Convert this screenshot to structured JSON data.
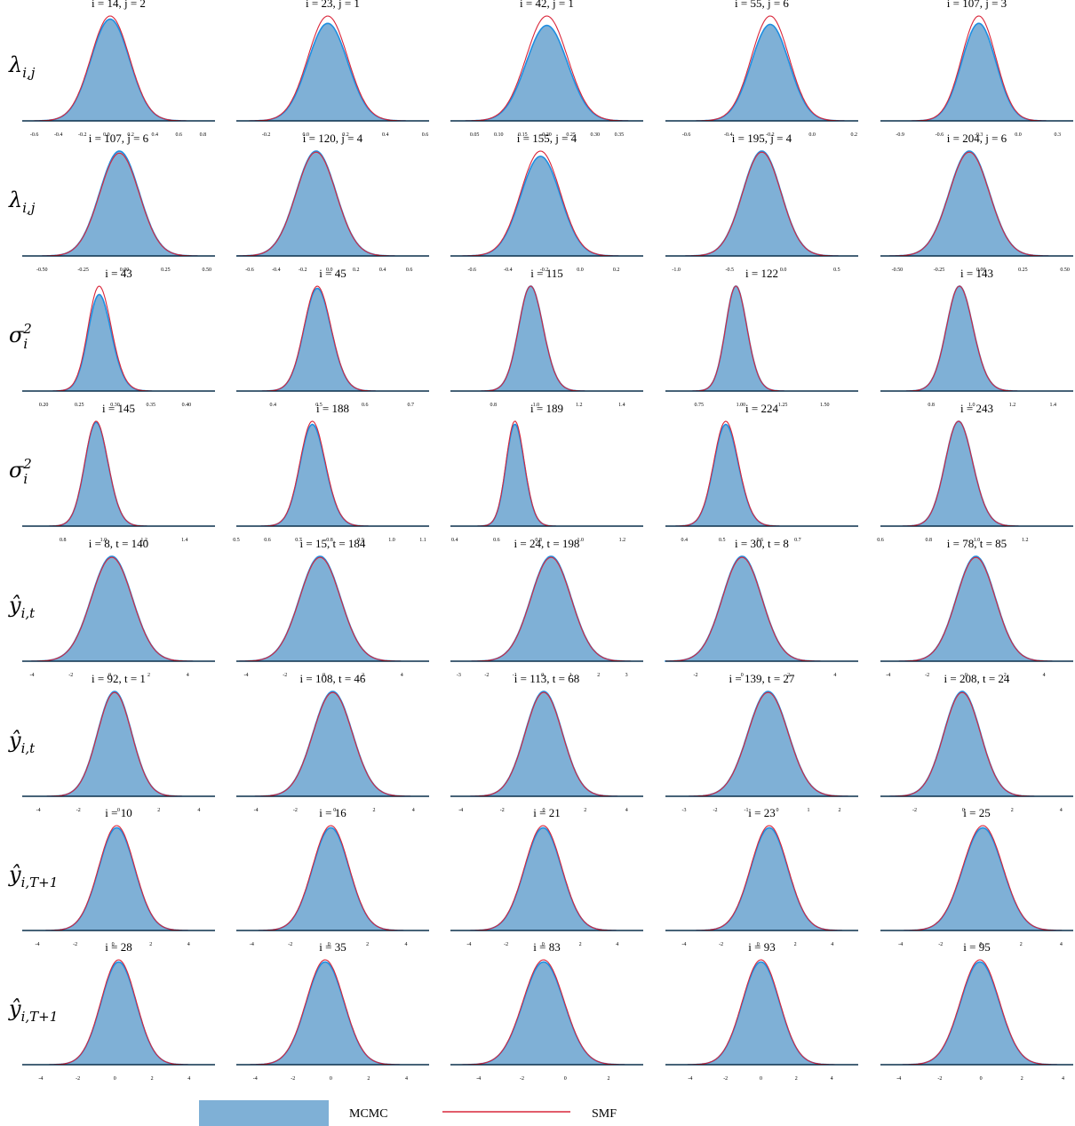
{
  "colors": {
    "mcmc_fill": "#7fb0d6",
    "mcmc_edge": "#1f8ee0",
    "smf_line": "#d9263a",
    "axis": "#000000"
  },
  "legend": {
    "mcmc_label": "MCMC",
    "smf_label": "SMF"
  },
  "row_labels": [
    "λi,j",
    "λi,j",
    "σi2",
    "σi2",
    "ŷi,t",
    "ŷi,t",
    "ŷi,T+1",
    "ŷi,T+1"
  ],
  "chart_data": {
    "type": "area",
    "series_names": [
      "MCMC",
      "SMF"
    ],
    "grid": false,
    "panels": [
      [
        {
          "title": "i = 14, j = 2",
          "ticks": [
            "-0.6",
            "-0.4",
            "-0.2",
            "0.0",
            "0.2",
            "0.4",
            "0.6",
            "0.8"
          ],
          "xlim": [
            -0.7,
            0.9
          ],
          "mean": 0.03,
          "sd": 0.16,
          "skew": 0,
          "peak_mcmc": 0.97,
          "peak_smf": 1.0
        },
        {
          "title": "i = 23, j = 1",
          "ticks": [
            "-0.2",
            "0.0",
            "0.2",
            "0.4",
            "0.6"
          ],
          "xlim": [
            -0.35,
            0.62
          ],
          "mean": 0.11,
          "sd": 0.1,
          "skew": 0,
          "peak_mcmc": 0.93,
          "peak_smf": 1.0
        },
        {
          "title": "i = 42, j = 1",
          "ticks": [
            "0.05",
            "0.10",
            "0.15",
            "0.20",
            "0.25",
            "0.30",
            "0.35"
          ],
          "xlim": [
            0.0,
            0.4
          ],
          "mean": 0.2,
          "sd": 0.043,
          "skew": 0,
          "peak_mcmc": 0.91,
          "peak_smf": 1.0
        },
        {
          "title": "i = 55, j = 6",
          "ticks": [
            "-0.6",
            "-0.4",
            "-0.2",
            "0.0",
            "0.2"
          ],
          "xlim": [
            -0.7,
            0.22
          ],
          "mean": -0.2,
          "sd": 0.09,
          "skew": 0,
          "peak_mcmc": 0.92,
          "peak_smf": 1.0
        },
        {
          "title": "i = 107, j = 3",
          "ticks": [
            "-0.9",
            "-0.6",
            "-0.3",
            "0.0",
            "0.3"
          ],
          "xlim": [
            -1.05,
            0.42
          ],
          "mean": -0.3,
          "sd": 0.13,
          "skew": 0,
          "peak_mcmc": 0.93,
          "peak_smf": 1.0
        }
      ],
      [
        {
          "title": "i = 107, j = 6",
          "ticks": [
            "-0.50",
            "-0.25",
            "0.00",
            "0.25",
            "0.50"
          ],
          "xlim": [
            -0.62,
            0.55
          ],
          "mean": -0.03,
          "sd": 0.12,
          "skew": 0,
          "peak_mcmc": 1.0,
          "peak_smf": 0.98
        },
        {
          "title": "i = 120, j = 4",
          "ticks": [
            "-0.6",
            "-0.4",
            "-0.2",
            "0.0",
            "0.2",
            "0.4",
            "0.6"
          ],
          "xlim": [
            -0.7,
            0.75
          ],
          "mean": -0.1,
          "sd": 0.15,
          "skew": 0,
          "peak_mcmc": 1.0,
          "peak_smf": 0.99
        },
        {
          "title": "i = 155, j = 4",
          "ticks": [
            "-0.6",
            "-0.4",
            "-0.2",
            "0.0",
            "0.2"
          ],
          "xlim": [
            -0.72,
            0.35
          ],
          "mean": -0.22,
          "sd": 0.11,
          "skew": 0,
          "peak_mcmc": 0.95,
          "peak_smf": 1.0
        },
        {
          "title": "i = 195, j = 4",
          "ticks": [
            "-1.0",
            "-0.5",
            "0.0",
            "0.5"
          ],
          "xlim": [
            -1.1,
            0.7
          ],
          "mean": -0.2,
          "sd": 0.18,
          "skew": 0,
          "peak_mcmc": 1.0,
          "peak_smf": 0.99
        },
        {
          "title": "i = 204, j = 6",
          "ticks": [
            "-0.50",
            "-0.25",
            "0.00",
            "0.25",
            "0.50"
          ],
          "xlim": [
            -0.6,
            0.55
          ],
          "mean": -0.07,
          "sd": 0.12,
          "skew": 0,
          "peak_mcmc": 1.0,
          "peak_smf": 0.99
        }
      ],
      [
        {
          "title": "i = 43",
          "ticks": [
            "0.20",
            "0.25",
            "0.30",
            "0.35",
            "0.40"
          ],
          "xlim": [
            0.17,
            0.44
          ],
          "mean": 0.267,
          "sd": 0.021,
          "skew": 0.55,
          "peak_mcmc": 0.92,
          "peak_smf": 1.0
        },
        {
          "title": "i = 45",
          "ticks": [
            "0.4",
            "0.5",
            "0.6",
            "0.7"
          ],
          "xlim": [
            0.32,
            0.74
          ],
          "mean": 0.48,
          "sd": 0.035,
          "skew": 0.4,
          "peak_mcmc": 0.98,
          "peak_smf": 1.0
        },
        {
          "title": "i = 115",
          "ticks": [
            "0.8",
            "1.0",
            "1.2",
            "1.4"
          ],
          "xlim": [
            0.6,
            1.5
          ],
          "mean": 0.94,
          "sd": 0.07,
          "skew": 0.45,
          "peak_mcmc": 1.0,
          "peak_smf": 1.0
        },
        {
          "title": "i = 122",
          "ticks": [
            "0.75",
            "1.00",
            "1.25",
            "1.50"
          ],
          "xlim": [
            0.55,
            1.7
          ],
          "mean": 0.93,
          "sd": 0.08,
          "skew": 0.5,
          "peak_mcmc": 1.0,
          "peak_smf": 1.0
        },
        {
          "title": "i = 143",
          "ticks": [
            "0.8",
            "1.0",
            "1.2",
            "1.4"
          ],
          "xlim": [
            0.55,
            1.5
          ],
          "mean": 0.9,
          "sd": 0.08,
          "skew": 0.45,
          "peak_mcmc": 1.0,
          "peak_smf": 1.0
        }
      ],
      [
        {
          "title": "i = 145",
          "ticks": [
            "0.8",
            "1.0",
            "1.2",
            "1.4"
          ],
          "xlim": [
            0.6,
            1.55
          ],
          "mean": 0.93,
          "sd": 0.07,
          "skew": 0.45,
          "peak_mcmc": 0.99,
          "peak_smf": 1.0
        },
        {
          "title": "i = 188",
          "ticks": [
            "0.5",
            "0.6",
            "0.7",
            "0.8",
            "0.9",
            "1.0",
            "1.1"
          ],
          "xlim": [
            0.5,
            1.12
          ],
          "mean": 0.72,
          "sd": 0.05,
          "skew": 0.45,
          "peak_mcmc": 0.97,
          "peak_smf": 1.0
        },
        {
          "title": "i = 189",
          "ticks": [
            "0.4",
            "0.6",
            "0.8",
            "1.0",
            "1.2"
          ],
          "xlim": [
            0.38,
            1.3
          ],
          "mean": 0.66,
          "sd": 0.055,
          "skew": 0.5,
          "peak_mcmc": 0.97,
          "peak_smf": 1.0
        },
        {
          "title": "i = 224",
          "ticks": [
            "0.4",
            "0.5",
            "0.6",
            "0.7"
          ],
          "xlim": [
            0.35,
            0.86
          ],
          "mean": 0.49,
          "sd": 0.04,
          "skew": 0.45,
          "peak_mcmc": 0.97,
          "peak_smf": 1.0
        },
        {
          "title": "i = 243",
          "ticks": [
            "0.6",
            "0.8",
            "1.0",
            "1.2"
          ],
          "xlim": [
            0.6,
            1.4
          ],
          "mean": 0.89,
          "sd": 0.07,
          "skew": 0.45,
          "peak_mcmc": 1.0,
          "peak_smf": 1.0
        }
      ],
      [
        {
          "title": "i = 8, t = 140",
          "ticks": [
            "-4",
            "-2",
            "0",
            "2",
            "4"
          ],
          "xlim": [
            -4.5,
            5.4
          ],
          "mean": 0.1,
          "sd": 1.05,
          "skew": 0,
          "peak_mcmc": 1.0,
          "peak_smf": 0.99
        },
        {
          "title": "i = 15, t = 184",
          "ticks": [
            "-4",
            "-2",
            "0",
            "2",
            "4"
          ],
          "xlim": [
            -4.5,
            5.4
          ],
          "mean": -0.2,
          "sd": 1.05,
          "skew": 0,
          "peak_mcmc": 1.0,
          "peak_smf": 0.99
        },
        {
          "title": "i = 24, t = 198",
          "ticks": [
            "-3",
            "-2",
            "-1",
            "0",
            "1",
            "2",
            "3"
          ],
          "xlim": [
            -3.3,
            3.6
          ],
          "mean": 0.3,
          "sd": 0.72,
          "skew": 0,
          "peak_mcmc": 1.0,
          "peak_smf": 0.99
        },
        {
          "title": "i = 30, t = 8",
          "ticks": [
            "-2",
            "0",
            "2",
            "4"
          ],
          "xlim": [
            -3.3,
            5.0
          ],
          "mean": 0.0,
          "sd": 0.85,
          "skew": 0,
          "peak_mcmc": 1.0,
          "peak_smf": 0.99
        },
        {
          "title": "i = 78, t = 85",
          "ticks": [
            "-4",
            "-2",
            "0",
            "2",
            "4"
          ],
          "xlim": [
            -4.4,
            5.5
          ],
          "mean": 0.5,
          "sd": 1.0,
          "skew": 0,
          "peak_mcmc": 1.0,
          "peak_smf": 0.99
        }
      ],
      [
        {
          "title": "i = 92, t = 1",
          "ticks": [
            "-4",
            "-2",
            "0",
            "2",
            "4"
          ],
          "xlim": [
            -4.8,
            4.8
          ],
          "mean": -0.2,
          "sd": 0.85,
          "skew": 0,
          "peak_mcmc": 1.0,
          "peak_smf": 0.99
        },
        {
          "title": "i = 108, t = 46",
          "ticks": [
            "-4",
            "-2",
            "0",
            "2",
            "4"
          ],
          "xlim": [
            -5.0,
            4.8
          ],
          "mean": -0.1,
          "sd": 1.0,
          "skew": 0,
          "peak_mcmc": 1.0,
          "peak_smf": 0.99
        },
        {
          "title": "i = 113, t = 68",
          "ticks": [
            "-4",
            "-2",
            "0",
            "2",
            "4"
          ],
          "xlim": [
            -4.5,
            4.8
          ],
          "mean": 0.0,
          "sd": 0.9,
          "skew": 0,
          "peak_mcmc": 1.0,
          "peak_smf": 0.99
        },
        {
          "title": "i = 139, t = 27",
          "ticks": [
            "-3",
            "-2",
            "-1",
            "0",
            "1",
            "2"
          ],
          "xlim": [
            -3.6,
            2.6
          ],
          "mean": -0.3,
          "sd": 0.65,
          "skew": 0,
          "peak_mcmc": 1.0,
          "peak_smf": 0.99
        },
        {
          "title": "i = 208, t = 24",
          "ticks": [
            "-2",
            "0",
            "2",
            "4"
          ],
          "xlim": [
            -3.4,
            4.5
          ],
          "mean": -0.05,
          "sd": 0.75,
          "skew": 0,
          "peak_mcmc": 1.0,
          "peak_smf": 0.99
        }
      ],
      [
        {
          "title": "i = 10",
          "ticks": [
            "-4",
            "-2",
            "0",
            "2",
            "4"
          ],
          "xlim": [
            -4.8,
            5.4
          ],
          "mean": 0.2,
          "sd": 0.95,
          "skew": 0,
          "peak_mcmc": 0.98,
          "peak_smf": 1.0
        },
        {
          "title": "i = 16",
          "ticks": [
            "-4",
            "-2",
            "0",
            "2",
            "4"
          ],
          "xlim": [
            -4.8,
            5.2
          ],
          "mean": 0.1,
          "sd": 0.95,
          "skew": 0,
          "peak_mcmc": 0.98,
          "peak_smf": 1.0
        },
        {
          "title": "i = 21",
          "ticks": [
            "-4",
            "-2",
            "0",
            "2",
            "4"
          ],
          "xlim": [
            -5.0,
            5.4
          ],
          "mean": 0.0,
          "sd": 1.0,
          "skew": 0,
          "peak_mcmc": 0.98,
          "peak_smf": 1.0
        },
        {
          "title": "i = 23",
          "ticks": [
            "-4",
            "-2",
            "0",
            "2",
            "4"
          ],
          "xlim": [
            -5.0,
            5.4
          ],
          "mean": 0.6,
          "sd": 1.0,
          "skew": 0,
          "peak_mcmc": 0.98,
          "peak_smf": 1.0
        },
        {
          "title": "i = 25",
          "ticks": [
            "-4",
            "-2",
            "0",
            "2",
            "4"
          ],
          "xlim": [
            -5.0,
            4.6
          ],
          "mean": 0.1,
          "sd": 1.0,
          "skew": 0,
          "peak_mcmc": 0.98,
          "peak_smf": 1.0
        }
      ],
      [
        {
          "title": "i = 28",
          "ticks": [
            "-4",
            "-2",
            "0",
            "2",
            "4"
          ],
          "xlim": [
            -5.0,
            5.4
          ],
          "mean": 0.2,
          "sd": 0.95,
          "skew": 0,
          "peak_mcmc": 0.98,
          "peak_smf": 1.0
        },
        {
          "title": "i = 35",
          "ticks": [
            "-4",
            "-2",
            "0",
            "2",
            "4"
          ],
          "xlim": [
            -5.0,
            5.2
          ],
          "mean": -0.3,
          "sd": 1.0,
          "skew": 0,
          "peak_mcmc": 0.98,
          "peak_smf": 1.0
        },
        {
          "title": "i = 83",
          "ticks": [
            "-4",
            "-2",
            "0",
            "2"
          ],
          "xlim": [
            -5.3,
            3.6
          ],
          "mean": -1.0,
          "sd": 0.95,
          "skew": 0,
          "peak_mcmc": 0.98,
          "peak_smf": 1.0
        },
        {
          "title": "i = 93",
          "ticks": [
            "-4",
            "-2",
            "0",
            "2",
            "4"
          ],
          "xlim": [
            -5.4,
            5.5
          ],
          "mean": 0.0,
          "sd": 1.05,
          "skew": 0,
          "peak_mcmc": 0.98,
          "peak_smf": 1.0
        },
        {
          "title": "i = 95",
          "ticks": [
            "-4",
            "-2",
            "0",
            "2",
            "4"
          ],
          "xlim": [
            -4.9,
            4.5
          ],
          "mean": -0.05,
          "sd": 0.95,
          "skew": 0,
          "peak_mcmc": 0.98,
          "peak_smf": 1.0
        }
      ]
    ]
  }
}
